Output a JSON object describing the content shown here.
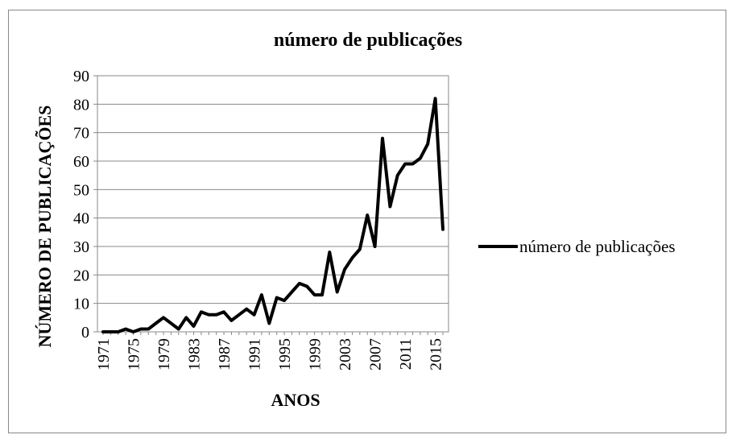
{
  "chart_data": {
    "type": "line",
    "title": "número de publicações",
    "xlabel": "ANOS",
    "ylabel": "NÚMERO DE PUBLICAÇÕES",
    "ylim": [
      0,
      90
    ],
    "yticks": [
      0,
      10,
      20,
      30,
      40,
      50,
      60,
      70,
      80,
      90
    ],
    "xtick_labels": [
      "1971",
      "1975",
      "1979",
      "1983",
      "1987",
      "1991",
      "1995",
      "1999",
      "2003",
      "2007",
      "2011",
      "2015"
    ],
    "grid": "horizontal",
    "legend_position": "right",
    "x": [
      1971,
      1972,
      1973,
      1974,
      1975,
      1976,
      1977,
      1978,
      1979,
      1980,
      1981,
      1982,
      1983,
      1984,
      1985,
      1986,
      1987,
      1988,
      1989,
      1990,
      1991,
      1992,
      1993,
      1994,
      1995,
      1996,
      1997,
      1998,
      1999,
      2000,
      2001,
      2002,
      2003,
      2004,
      2005,
      2006,
      2007,
      2008,
      2009,
      2010,
      2011,
      2012,
      2013,
      2014,
      2015,
      2016
    ],
    "series": [
      {
        "name": "número de publicações",
        "color": "#000000",
        "values": [
          0,
          0,
          0,
          1,
          0,
          1,
          1,
          3,
          5,
          3,
          1,
          5,
          2,
          7,
          6,
          6,
          7,
          4,
          6,
          8,
          6,
          13,
          3,
          12,
          11,
          14,
          17,
          16,
          13,
          13,
          28,
          14,
          22,
          26,
          29,
          41,
          30,
          68,
          44,
          55,
          59,
          59,
          61,
          66,
          82,
          36
        ]
      }
    ]
  }
}
